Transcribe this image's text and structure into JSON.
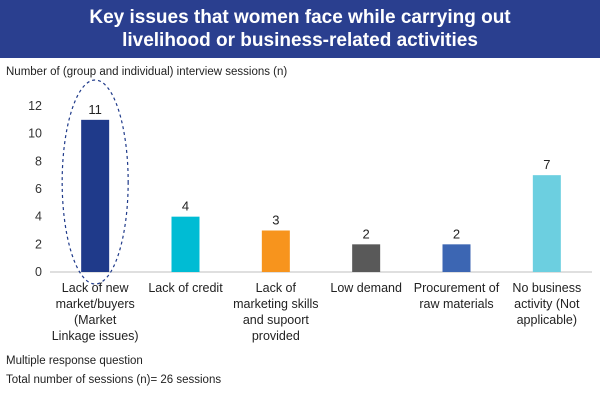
{
  "title": {
    "line1": "Key issues that women face while carrying out",
    "line2": "livelihood or business-related activities"
  },
  "chart_data": {
    "type": "bar",
    "title": "Key issues that women face while carrying out livelihood or business-related activities",
    "ylabel": "Number of (group and individual) interview sessions (n)",
    "xlabel": "",
    "ylim": [
      0,
      12
    ],
    "yticks": [
      0,
      2,
      4,
      6,
      8,
      10,
      12
    ],
    "grid": false,
    "categories": [
      [
        "Lack of new",
        "market/buyers",
        "(Market",
        "Linkage issues)"
      ],
      [
        "Lack of credit"
      ],
      [
        "Lack of",
        "marketing skills",
        "and supoort",
        "provided"
      ],
      [
        "Low demand"
      ],
      [
        "Procurement of",
        "raw materials"
      ],
      [
        "No business",
        "activity (Not",
        "applicable)"
      ]
    ],
    "values": [
      11,
      4,
      3,
      2,
      2,
      7
    ],
    "colors": [
      "#1f3a8a",
      "#00bcd4",
      "#f7941d",
      "#595959",
      "#3c66b3",
      "#6ccfe0"
    ],
    "highlight": "dashed-ellipse-around-first-bar"
  },
  "notes": {
    "line1": "Multiple response question",
    "line2": "Total number of sessions (n)= 26 sessions"
  }
}
